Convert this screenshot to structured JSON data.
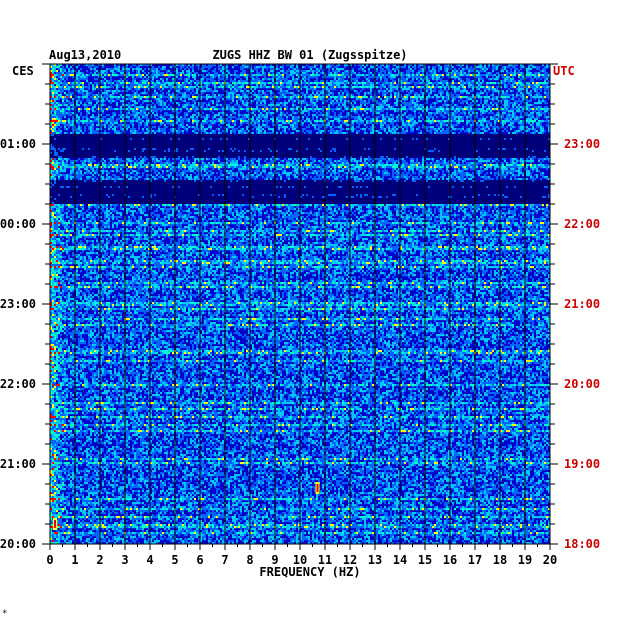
{
  "chart_data": {
    "type": "heatmap",
    "title": "ZUGS HHZ BW 01 (Zugsspitze)",
    "date": "Aug13,2010",
    "left_timezone": "CES",
    "right_timezone": "UTC",
    "xlabel": "FREQUENCY (HZ)",
    "x_ticks": [
      "0",
      "1",
      "2",
      "3",
      "4",
      "5",
      "6",
      "7",
      "8",
      "9",
      "10",
      "11",
      "12",
      "13",
      "14",
      "15",
      "16",
      "17",
      "18",
      "19",
      "20"
    ],
    "xlim": [
      0,
      20
    ],
    "left_time_ticks": [
      "01:00",
      "00:00",
      "23:00",
      "22:00",
      "21:00",
      "20:00"
    ],
    "right_time_ticks": [
      "23:00",
      "22:00",
      "21:00",
      "20:00",
      "19:00",
      "18:00"
    ],
    "time_range_utc": [
      "18:00",
      "24:00"
    ],
    "colors": {
      "background": "#0000c8",
      "low": "#0000ff",
      "mid": "#00c8ff",
      "high": "#ffff00",
      "peak": "#ff0000",
      "utc_axis": "#cc0000"
    },
    "quiet_bands_utc": [
      [
        "22:15",
        "22:33"
      ],
      [
        "22:49",
        "23:08"
      ]
    ],
    "notable_features": [
      {
        "frequency_hz": 10.7,
        "time_utc": "18:42",
        "level": "peak"
      },
      {
        "frequency_hz": 0.2,
        "time_utc": "18:15",
        "level": "peak"
      }
    ]
  },
  "footer_mark": "*"
}
